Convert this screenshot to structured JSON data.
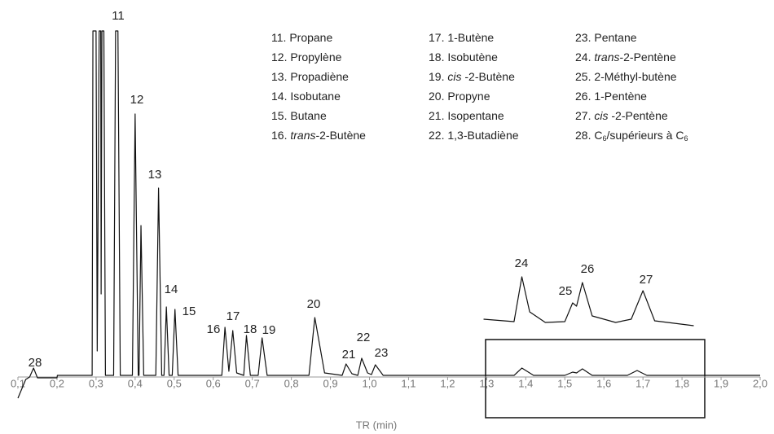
{
  "chart_data": {
    "type": "line",
    "xlabel": "TR (min)",
    "xlim": [
      0.1,
      2.0
    ],
    "ylim": [
      -30,
      423
    ],
    "xticks": [
      {
        "value": 0.1,
        "label": "0,1"
      },
      {
        "value": 0.2,
        "label": "0,2"
      },
      {
        "value": 0.3,
        "label": "0,3"
      },
      {
        "value": 0.4,
        "label": "0,4"
      },
      {
        "value": 0.5,
        "label": "0,5"
      },
      {
        "value": 0.6,
        "label": "0,6"
      },
      {
        "value": 0.7,
        "label": "0,7"
      },
      {
        "value": 0.8,
        "label": "0,8"
      },
      {
        "value": 0.9,
        "label": "0,9"
      },
      {
        "value": 1.0,
        "label": "1,0"
      },
      {
        "value": 1.1,
        "label": "1,1"
      },
      {
        "value": 1.2,
        "label": "1,2"
      },
      {
        "value": 1.3,
        "label": "1,3"
      },
      {
        "value": 1.4,
        "label": "1,4"
      },
      {
        "value": 1.5,
        "label": "1,5"
      },
      {
        "value": 1.6,
        "label": "1,6"
      },
      {
        "value": 1.7,
        "label": "1,7"
      },
      {
        "value": 1.8,
        "label": "1,8"
      },
      {
        "value": 1.9,
        "label": "1,9"
      },
      {
        "value": 2.0,
        "label": "2,0"
      }
    ],
    "color": "#111111",
    "x": [
      0.1,
      0.12,
      0.13,
      0.14,
      0.15,
      0.2,
      0.201,
      0.29,
      0.292,
      0.3,
      0.303,
      0.308,
      0.312,
      0.313,
      0.315,
      0.32,
      0.324,
      0.345,
      0.35,
      0.356,
      0.362,
      0.393,
      0.4,
      0.408,
      0.41,
      0.415,
      0.422,
      0.453,
      0.46,
      0.468,
      0.474,
      0.48,
      0.487,
      0.495,
      0.502,
      0.51,
      0.622,
      0.63,
      0.64,
      0.65,
      0.66,
      0.678,
      0.685,
      0.695,
      0.715,
      0.725,
      0.738,
      0.845,
      0.86,
      0.885,
      0.93,
      0.94,
      0.955,
      0.97,
      0.98,
      0.995,
      1.005,
      1.015,
      1.035,
      1.37,
      1.39,
      1.42,
      1.5,
      1.52,
      1.53,
      1.545,
      1.57,
      1.66,
      1.685,
      1.71,
      2.0
    ],
    "values": [
      -28,
      -5,
      -2,
      9,
      -3,
      -3,
      0,
      0,
      423,
      423,
      30,
      423,
      423,
      100,
      423,
      423,
      0,
      0,
      423,
      423,
      0,
      0,
      321,
      0,
      0,
      184,
      0,
      0,
      230,
      0,
      0,
      84,
      0,
      0,
      81,
      0,
      0,
      59,
      5,
      55,
      3,
      0,
      49,
      0,
      0,
      46,
      0,
      0,
      71,
      3,
      0,
      14,
      2,
      0,
      21,
      3,
      1,
      13,
      0,
      0,
      9,
      0,
      0,
      4,
      3,
      8,
      0,
      0,
      6,
      0,
      0
    ],
    "inset": {
      "x": [
        1.292,
        1.37,
        1.39,
        1.41,
        1.45,
        1.5,
        1.52,
        1.53,
        1.545,
        1.57,
        1.63,
        1.67,
        1.7,
        1.73,
        1.83
      ],
      "values": [
        6,
        3,
        58,
        15,
        2,
        3,
        26,
        22,
        51,
        10,
        2,
        6,
        41,
        4,
        -2
      ]
    },
    "peak_labels": [
      "11",
      "12",
      "13",
      "14",
      "15",
      "16",
      "17",
      "18",
      "19",
      "20",
      "21",
      "22",
      "23",
      "28",
      "24",
      "25",
      "26",
      "27"
    ],
    "legend": [
      {
        "num": "11.",
        "parts": [
          "Propane"
        ]
      },
      {
        "num": "12.",
        "parts": [
          "Propylène"
        ]
      },
      {
        "num": "13.",
        "parts": [
          "Propadiène"
        ]
      },
      {
        "num": "14.",
        "parts": [
          "Isobutane"
        ]
      },
      {
        "num": "15.",
        "parts": [
          "Butane"
        ]
      },
      {
        "num": "16.",
        "parts": [
          {
            "text": "trans",
            "style": "italic"
          },
          "-2-Butène"
        ]
      },
      {
        "num": "17.",
        "parts": [
          "1-Butène"
        ]
      },
      {
        "num": "18.",
        "parts": [
          "Isobutène"
        ]
      },
      {
        "num": "19.",
        "parts": [
          {
            "text": "cis",
            "style": "italic"
          },
          " -2-Butène"
        ]
      },
      {
        "num": "20.",
        "parts": [
          "Propyne"
        ]
      },
      {
        "num": "21.",
        "parts": [
          "Isopentane"
        ]
      },
      {
        "num": "22.",
        "parts": [
          "1,3-Butadiène"
        ]
      },
      {
        "num": "23.",
        "parts": [
          "Pentane"
        ]
      },
      {
        "num": "24.",
        "parts": [
          {
            "text": "trans",
            "style": "italic"
          },
          "-2-Pentène"
        ]
      },
      {
        "num": "25.",
        "parts": [
          "2-Méthyl-butène"
        ]
      },
      {
        "num": "26.",
        "parts": [
          "1-Pentène"
        ]
      },
      {
        "num": "27.",
        "parts": [
          {
            "text": "cis",
            "style": "italic"
          },
          " -2-Pentène"
        ]
      },
      {
        "num": "28.",
        "parts": [
          "C",
          {
            "text": "6",
            "style": "sub"
          },
          "/supérieurs à C",
          {
            "text": "6",
            "style": "sub"
          }
        ]
      }
    ]
  }
}
